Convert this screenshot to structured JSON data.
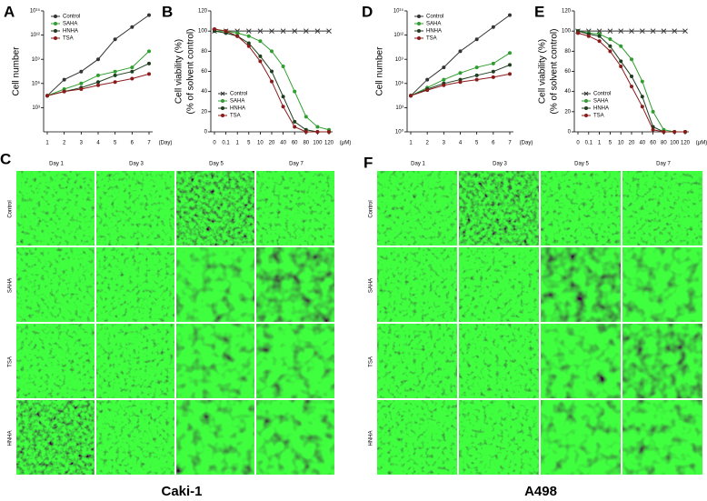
{
  "panel_labels": [
    "A",
    "B",
    "C",
    "D",
    "E",
    "F"
  ],
  "chart_data": [
    {
      "type": "line",
      "y_label": [
        "Cell number"
      ],
      "x_label": "(Day)",
      "log_scale": true,
      "legend": "top-left",
      "categories": [
        "1",
        "2",
        "3",
        "4",
        "5",
        "6",
        "7"
      ],
      "ylim": [
        1,
        1000000000000000.0
      ],
      "yticks": [
        {
          "value": 1000.0,
          "label": "10³"
        },
        {
          "value": 1000000.0,
          "label": "10⁶"
        },
        {
          "value": 1000000000.0,
          "label": "10⁹"
        },
        {
          "value": 1000000000000.0,
          "label": "10¹²"
        },
        {
          "value": 1000000000000000.0,
          "label": "10¹⁵"
        }
      ],
      "series": [
        {
          "name": "Control",
          "color": "#333333",
          "marker": "circle",
          "values": [
            30000,
            3000000,
            30000000,
            1000000000.0,
            300000000000.0,
            10000000000000.0,
            300000000000000.0
          ]
        },
        {
          "name": "SAHA",
          "color": "#2f9e2f",
          "marker": "circle",
          "values": [
            30000,
            200000,
            1000000,
            10000000,
            30000000,
            100000000,
            10000000000.0
          ]
        },
        {
          "name": "HNHA",
          "color": "#1f3d1f",
          "marker": "circle",
          "values": [
            30000,
            100000,
            300000,
            1500000,
            10000000,
            30000000,
            300000000
          ]
        },
        {
          "name": "TSA",
          "color": "#8b1a1a",
          "marker": "circle",
          "values": [
            30000,
            100000,
            200000,
            600000,
            1500000,
            4000000,
            15000000
          ]
        }
      ]
    },
    {
      "type": "line",
      "y_label": [
        "Cell viability (%)",
        "(% of solvent control)"
      ],
      "x_label": "(μM)",
      "legend": "bottom-left",
      "categories": [
        "0",
        "0.1",
        "1",
        "5",
        "10",
        "20",
        "40",
        "60",
        "80",
        "100",
        "120"
      ],
      "ylim": [
        0,
        120
      ],
      "yticks": [
        0,
        20,
        40,
        60,
        80,
        100,
        120
      ],
      "series": [
        {
          "name": "Control",
          "color": "#333333",
          "marker": "x",
          "values": [
            100,
            100,
            100,
            100,
            100,
            100,
            100,
            100,
            100,
            100,
            100
          ]
        },
        {
          "name": "SAHA",
          "color": "#2f9e2f",
          "marker": "circle",
          "values": [
            100,
            100,
            98,
            95,
            90,
            80,
            65,
            40,
            15,
            5,
            2
          ]
        },
        {
          "name": "HNHA",
          "color": "#1f3d1f",
          "marker": "circle",
          "values": [
            100,
            98,
            95,
            88,
            75,
            60,
            35,
            10,
            2,
            0,
            0
          ]
        },
        {
          "name": "TSA",
          "color": "#8b1a1a",
          "marker": "circle",
          "values": [
            102,
            100,
            95,
            85,
            70,
            50,
            25,
            5,
            0,
            0,
            0
          ]
        }
      ]
    },
    {
      "type": "line",
      "y_label": [
        "Cell number"
      ],
      "x_label": "(Day)",
      "log_scale": true,
      "legend": "top-left",
      "categories": [
        "1",
        "2",
        "3",
        "4",
        "5",
        "6",
        "7"
      ],
      "ylim": [
        1,
        1000000000000000.0
      ],
      "yticks": [
        {
          "value": 1,
          "label": "10⁰"
        },
        {
          "value": 1000.0,
          "label": "10³"
        },
        {
          "value": 1000000.0,
          "label": "10⁶"
        },
        {
          "value": 1000000000.0,
          "label": "10⁹"
        },
        {
          "value": 1000000000000.0,
          "label": "10¹²"
        },
        {
          "value": 1000000000000000.0,
          "label": "10¹⁵"
        }
      ],
      "series": [
        {
          "name": "Control",
          "color": "#333333",
          "marker": "circle",
          "values": [
            30000,
            3000000,
            100000000,
            10000000000.0,
            300000000000.0,
            10000000000000.0,
            300000000000000.0
          ]
        },
        {
          "name": "SAHA",
          "color": "#2f9e2f",
          "marker": "circle",
          "values": [
            30000,
            300000,
            3000000,
            20000000,
            100000000,
            300000000,
            6000000000.0
          ]
        },
        {
          "name": "HNHA",
          "color": "#1f3d1f",
          "marker": "circle",
          "values": [
            30000,
            200000,
            1000000,
            3000000,
            10000000,
            30000000,
            200000000
          ]
        },
        {
          "name": "TSA",
          "color": "#8b1a1a",
          "marker": "circle",
          "values": [
            30000,
            150000,
            600000,
            1500000,
            3000000,
            6000000,
            15000000
          ]
        }
      ]
    },
    {
      "type": "line",
      "y_label": [
        "Cell viability (%)",
        "(% of solvent control)"
      ],
      "x_label": "(μM)",
      "legend": "bottom-left",
      "categories": [
        "0",
        "0.1",
        "1",
        "5",
        "10",
        "20",
        "40",
        "60",
        "80",
        "100",
        "120"
      ],
      "ylim": [
        0,
        120
      ],
      "yticks": [
        0,
        20,
        40,
        60,
        80,
        100,
        120
      ],
      "series": [
        {
          "name": "Control",
          "color": "#333333",
          "marker": "x",
          "values": [
            100,
            100,
            100,
            100,
            100,
            100,
            100,
            100,
            100,
            100,
            100
          ]
        },
        {
          "name": "SAHA",
          "color": "#2f9e2f",
          "marker": "circle",
          "values": [
            100,
            98,
            97,
            92,
            85,
            72,
            50,
            20,
            2,
            0,
            0
          ]
        },
        {
          "name": "HNHA",
          "color": "#1f3d1f",
          "marker": "circle",
          "values": [
            100,
            97,
            95,
            85,
            70,
            55,
            35,
            5,
            0,
            0,
            0
          ]
        },
        {
          "name": "TSA",
          "color": "#8b1a1a",
          "marker": "circle",
          "values": [
            98,
            95,
            90,
            80,
            65,
            45,
            25,
            2,
            0,
            0,
            0
          ]
        }
      ]
    }
  ],
  "image_grids": [
    {
      "columns": [
        "Day 1",
        "Day 3",
        "Day 5",
        "Day 7"
      ],
      "rows": [
        "Control",
        "SAHA",
        "TSA",
        "HNHA"
      ],
      "caption": "Caki-1"
    },
    {
      "columns": [
        "Day 1",
        "Day 3",
        "Day 5",
        "Day 7"
      ],
      "rows": [
        "Control",
        "SAHA",
        "TSA",
        "HNHA"
      ],
      "caption": "A498"
    }
  ]
}
